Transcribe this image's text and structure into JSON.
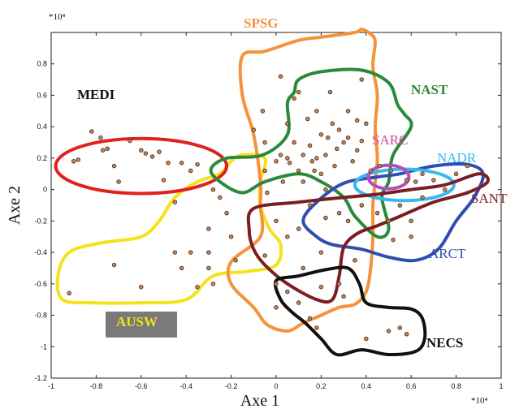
{
  "chart_data": {
    "type": "scatter",
    "title": "",
    "xlabel": "Axe 1",
    "ylabel": "Axe 2",
    "x_multiplier": "*10⁴",
    "y_multiplier": "*10⁴",
    "xlim": [
      -1,
      1
    ],
    "ylim": [
      -1.2,
      1
    ],
    "x_ticks": [
      -1,
      -0.8,
      -0.6,
      -0.4,
      -0.2,
      0,
      0.2,
      0.4,
      0.6,
      0.8,
      1
    ],
    "y_ticks": [
      -1.2,
      -1,
      -0.8,
      -0.6,
      -0.4,
      -0.2,
      0,
      0.2,
      0.4,
      0.6,
      0.8
    ],
    "x_tick_labels": [
      "-1",
      "-0.8",
      "-0.6",
      "-0.4",
      "-0.2",
      "0",
      "0.2",
      "0.4",
      "0.6",
      "0.8",
      "1"
    ],
    "y_tick_labels": [
      "-1.2",
      "-1",
      "-0.8",
      "-0.6",
      "-0.4",
      "-0.2",
      "0",
      "0.2",
      "0.4",
      "0.6",
      "0.8"
    ],
    "grid": false,
    "regions": [
      {
        "name": "MEDI",
        "color": "#e0211c",
        "label_color": "#111111",
        "shape": "ellipse",
        "center": [
          -0.6,
          0.15
        ],
        "radius": [
          0.38,
          0.175
        ]
      },
      {
        "name": "SPSG",
        "color": "#f5923a",
        "label_color": "#f5923a",
        "shape": "polygon",
        "outline": [
          [
            -0.15,
            0.85
          ],
          [
            -0.05,
            0.88
          ],
          [
            0.1,
            0.95
          ],
          [
            0.2,
            0.97
          ],
          [
            0.35,
            1.0
          ],
          [
            0.38,
            1.02
          ],
          [
            0.42,
            0.99
          ],
          [
            0.44,
            0.94
          ],
          [
            0.43,
            0.78
          ],
          [
            0.45,
            0.6
          ],
          [
            0.44,
            0.4
          ],
          [
            0.45,
            0.2
          ],
          [
            0.44,
            0.05
          ],
          [
            0.43,
            -0.1
          ],
          [
            0.43,
            -0.3
          ],
          [
            0.42,
            -0.5
          ],
          [
            0.4,
            -0.65
          ],
          [
            0.35,
            -0.73
          ],
          [
            0.28,
            -0.75
          ],
          [
            0.2,
            -0.8
          ],
          [
            0.12,
            -0.85
          ],
          [
            0.05,
            -0.9
          ],
          [
            -0.04,
            -0.86
          ],
          [
            -0.1,
            -0.75
          ],
          [
            -0.2,
            -0.6
          ],
          [
            -0.2,
            -0.46
          ],
          [
            -0.07,
            -0.3
          ],
          [
            -0.07,
            -0.1
          ],
          [
            -0.07,
            0.05
          ],
          [
            -0.1,
            0.35
          ],
          [
            -0.15,
            0.6
          ]
        ]
      },
      {
        "name": "NAST",
        "color": "#2a8a3a",
        "label_color": "#2a8a3a",
        "shape": "polygon",
        "outline": [
          [
            0.05,
            0.55
          ],
          [
            0.08,
            0.62
          ],
          [
            0.1,
            0.7
          ],
          [
            0.2,
            0.75
          ],
          [
            0.38,
            0.76
          ],
          [
            0.5,
            0.68
          ],
          [
            0.54,
            0.54
          ],
          [
            0.57,
            0.48
          ],
          [
            0.6,
            0.4
          ],
          [
            0.52,
            0.22
          ],
          [
            0.5,
            0.05
          ],
          [
            0.47,
            -0.05
          ],
          [
            0.5,
            -0.25
          ],
          [
            0.45,
            -0.3
          ],
          [
            0.35,
            -0.17
          ],
          [
            0.3,
            -0.05
          ],
          [
            0.2,
            0.05
          ],
          [
            0.1,
            0.1
          ],
          [
            -0.05,
            0.05
          ],
          [
            -0.15,
            -0.02
          ],
          [
            -0.25,
            0.05
          ],
          [
            -0.29,
            0.13
          ],
          [
            -0.22,
            0.2
          ],
          [
            -0.06,
            0.22
          ],
          [
            0.05,
            0.35
          ]
        ]
      },
      {
        "name": "SARC",
        "color": "#b34fb8",
        "label_color": "#e040a0",
        "shape": "ellipse",
        "center": [
          0.5,
          0.08
        ],
        "radius": [
          0.09,
          0.075
        ]
      },
      {
        "name": "NADR",
        "color": "#3ab7f0",
        "label_color": "#3ab7f0",
        "shape": "ellipse",
        "center": [
          0.57,
          0.03
        ],
        "radius": [
          0.22,
          0.1
        ]
      },
      {
        "name": "SANT",
        "color": "#7a1e22",
        "label_color": "#7a1e22",
        "shape": "polygon",
        "outline": [
          [
            -0.1,
            -0.12
          ],
          [
            0.1,
            -0.08
          ],
          [
            0.3,
            -0.05
          ],
          [
            0.45,
            -0.03
          ],
          [
            0.6,
            0.0
          ],
          [
            0.75,
            0.03
          ],
          [
            0.9,
            0.1
          ],
          [
            0.94,
            0.05
          ],
          [
            0.85,
            -0.02
          ],
          [
            0.7,
            -0.08
          ],
          [
            0.55,
            -0.17
          ],
          [
            0.45,
            -0.23
          ],
          [
            0.36,
            -0.28
          ],
          [
            0.3,
            -0.37
          ],
          [
            0.28,
            -0.55
          ],
          [
            0.25,
            -0.7
          ],
          [
            0.18,
            -0.7
          ],
          [
            0.05,
            -0.6
          ],
          [
            -0.05,
            -0.48
          ],
          [
            -0.1,
            -0.38
          ],
          [
            -0.12,
            -0.26
          ]
        ]
      },
      {
        "name": "ARCT",
        "color": "#2f4fb0",
        "label_color": "#2f4fb0",
        "shape": "polygon",
        "outline": [
          [
            0.18,
            -0.08
          ],
          [
            0.3,
            0.04
          ],
          [
            0.45,
            0.08
          ],
          [
            0.55,
            0.1
          ],
          [
            0.7,
            0.15
          ],
          [
            0.85,
            0.16
          ],
          [
            0.92,
            0.1
          ],
          [
            0.88,
            -0.05
          ],
          [
            0.8,
            -0.2
          ],
          [
            0.72,
            -0.38
          ],
          [
            0.62,
            -0.45
          ],
          [
            0.5,
            -0.43
          ],
          [
            0.38,
            -0.38
          ],
          [
            0.25,
            -0.35
          ],
          [
            0.18,
            -0.3
          ],
          [
            0.12,
            -0.2
          ]
        ]
      },
      {
        "name": "NECS",
        "color": "#111111",
        "label_color": "#111111",
        "shape": "polygon",
        "outline": [
          [
            0.0,
            -0.58
          ],
          [
            0.1,
            -0.55
          ],
          [
            0.22,
            -0.51
          ],
          [
            0.32,
            -0.5
          ],
          [
            0.37,
            -0.6
          ],
          [
            0.4,
            -0.72
          ],
          [
            0.5,
            -0.75
          ],
          [
            0.6,
            -0.76
          ],
          [
            0.65,
            -0.82
          ],
          [
            0.66,
            -0.95
          ],
          [
            0.62,
            -1.03
          ],
          [
            0.5,
            -1.05
          ],
          [
            0.38,
            -1.02
          ],
          [
            0.27,
            -1.05
          ],
          [
            0.2,
            -0.95
          ],
          [
            0.13,
            -0.85
          ],
          [
            0.07,
            -0.78
          ],
          [
            0.02,
            -0.7
          ]
        ]
      },
      {
        "name": "AUSW",
        "color": "#f5e21a",
        "label_color": "#f5e21a",
        "label_bg": "#7a7a7a",
        "shape": "polygon",
        "outline": [
          [
            -0.95,
            -0.7
          ],
          [
            -0.82,
            -0.72
          ],
          [
            -0.6,
            -0.72
          ],
          [
            -0.4,
            -0.7
          ],
          [
            -0.28,
            -0.55
          ],
          [
            -0.12,
            -0.52
          ],
          [
            0.0,
            -0.48
          ],
          [
            0.02,
            -0.35
          ],
          [
            -0.03,
            -0.25
          ],
          [
            -0.07,
            -0.1
          ],
          [
            -0.07,
            0.05
          ],
          [
            -0.05,
            0.2
          ],
          [
            -0.15,
            0.22
          ],
          [
            -0.2,
            0.18
          ],
          [
            -0.25,
            0.1
          ],
          [
            -0.35,
            0.05
          ],
          [
            -0.45,
            -0.05
          ],
          [
            -0.52,
            -0.2
          ],
          [
            -0.6,
            -0.3
          ],
          [
            -0.78,
            -0.34
          ],
          [
            -0.92,
            -0.4
          ],
          [
            -0.97,
            -0.55
          ]
        ]
      }
    ],
    "points": [
      [
        -0.9,
        0.18
      ],
      [
        -0.88,
        0.19
      ],
      [
        -0.82,
        0.37
      ],
      [
        -0.78,
        0.33
      ],
      [
        -0.77,
        0.25
      ],
      [
        -0.75,
        0.26
      ],
      [
        -0.72,
        0.15
      ],
      [
        -0.7,
        0.05
      ],
      [
        -0.65,
        0.31
      ],
      [
        -0.6,
        0.25
      ],
      [
        -0.58,
        0.23
      ],
      [
        -0.55,
        0.21
      ],
      [
        -0.52,
        0.24
      ],
      [
        -0.5,
        0.06
      ],
      [
        -0.48,
        0.17
      ],
      [
        -0.42,
        0.17
      ],
      [
        -0.38,
        0.12
      ],
      [
        -0.35,
        0.16
      ],
      [
        -0.28,
        0.0
      ],
      [
        -0.92,
        -0.66
      ],
      [
        -0.72,
        -0.48
      ],
      [
        -0.6,
        -0.62
      ],
      [
        -0.45,
        -0.4
      ],
      [
        -0.42,
        -0.5
      ],
      [
        -0.38,
        -0.4
      ],
      [
        -0.35,
        -0.62
      ],
      [
        -0.3,
        -0.4
      ],
      [
        -0.3,
        -0.5
      ],
      [
        -0.28,
        -0.6
      ],
      [
        -0.22,
        -0.15
      ],
      [
        -0.2,
        -0.3
      ],
      [
        -0.18,
        -0.45
      ],
      [
        -0.3,
        -0.25
      ],
      [
        -0.25,
        -0.05
      ],
      [
        -0.45,
        -0.08
      ],
      [
        -0.1,
        0.38
      ],
      [
        -0.06,
        0.5
      ],
      [
        -0.05,
        0.3
      ],
      [
        -0.05,
        0.12
      ],
      [
        -0.04,
        -0.02
      ],
      [
        0.0,
        0.18
      ],
      [
        0.02,
        0.22
      ],
      [
        0.03,
        0.05
      ],
      [
        0.05,
        0.42
      ],
      [
        0.06,
        0.17
      ],
      [
        0.08,
        0.3
      ],
      [
        0.1,
        0.12
      ],
      [
        0.12,
        0.05
      ],
      [
        0.14,
        0.45
      ],
      [
        0.15,
        0.28
      ],
      [
        0.16,
        0.18
      ],
      [
        0.18,
        0.5
      ],
      [
        0.2,
        0.35
      ],
      [
        0.22,
        0.22
      ],
      [
        0.24,
        0.62
      ],
      [
        0.25,
        0.42
      ],
      [
        0.26,
        0.15
      ],
      [
        0.28,
        0.38
      ],
      [
        0.3,
        0.3
      ],
      [
        0.32,
        0.5
      ],
      [
        0.34,
        0.18
      ],
      [
        0.36,
        0.25
      ],
      [
        0.38,
        0.7
      ],
      [
        0.4,
        0.42
      ],
      [
        0.08,
        0.58
      ],
      [
        0.1,
        0.62
      ],
      [
        0.02,
        0.72
      ],
      [
        0.18,
        0.2
      ],
      [
        0.22,
        0.0
      ],
      [
        0.2,
        0.1
      ],
      [
        0.05,
        0.2
      ],
      [
        0.12,
        0.22
      ],
      [
        0.17,
        0.12
      ],
      [
        0.23,
        0.33
      ],
      [
        0.27,
        0.26
      ],
      [
        0.32,
        0.33
      ],
      [
        0.36,
        0.44
      ],
      [
        0.38,
        0.31
      ],
      [
        0.42,
        0.12
      ],
      [
        0.46,
        0.15
      ],
      [
        0.51,
        0.12
      ],
      [
        0.58,
        0.06
      ],
      [
        0.62,
        0.05
      ],
      [
        0.65,
        0.1
      ],
      [
        0.7,
        0.06
      ],
      [
        0.75,
        0.0
      ],
      [
        0.8,
        0.1
      ],
      [
        0.85,
        0.15
      ],
      [
        0.55,
        -0.1
      ],
      [
        0.6,
        -0.2
      ],
      [
        0.65,
        -0.05
      ],
      [
        0.5,
        -0.2
      ],
      [
        0.45,
        -0.15
      ],
      [
        0.38,
        -0.1
      ],
      [
        0.32,
        -0.2
      ],
      [
        0.28,
        -0.15
      ],
      [
        0.22,
        -0.18
      ],
      [
        0.15,
        -0.1
      ],
      [
        0.1,
        -0.25
      ],
      [
        0.05,
        -0.3
      ],
      [
        0.0,
        -0.2
      ],
      [
        0.52,
        -0.32
      ],
      [
        0.6,
        -0.3
      ],
      [
        0.0,
        -0.6
      ],
      [
        0.05,
        -0.65
      ],
      [
        0.12,
        -0.5
      ],
      [
        0.2,
        -0.62
      ],
      [
        0.28,
        -0.6
      ],
      [
        0.3,
        -0.68
      ],
      [
        0.1,
        -0.72
      ],
      [
        0.15,
        -0.82
      ],
      [
        0.18,
        -0.88
      ],
      [
        0.4,
        -0.95
      ],
      [
        0.5,
        -0.9
      ],
      [
        0.55,
        -0.88
      ],
      [
        0.58,
        -0.92
      ],
      [
        0.35,
        -0.45
      ],
      [
        0.2,
        -0.4
      ],
      [
        -0.05,
        -0.42
      ],
      [
        0.0,
        -0.75
      ]
    ]
  }
}
